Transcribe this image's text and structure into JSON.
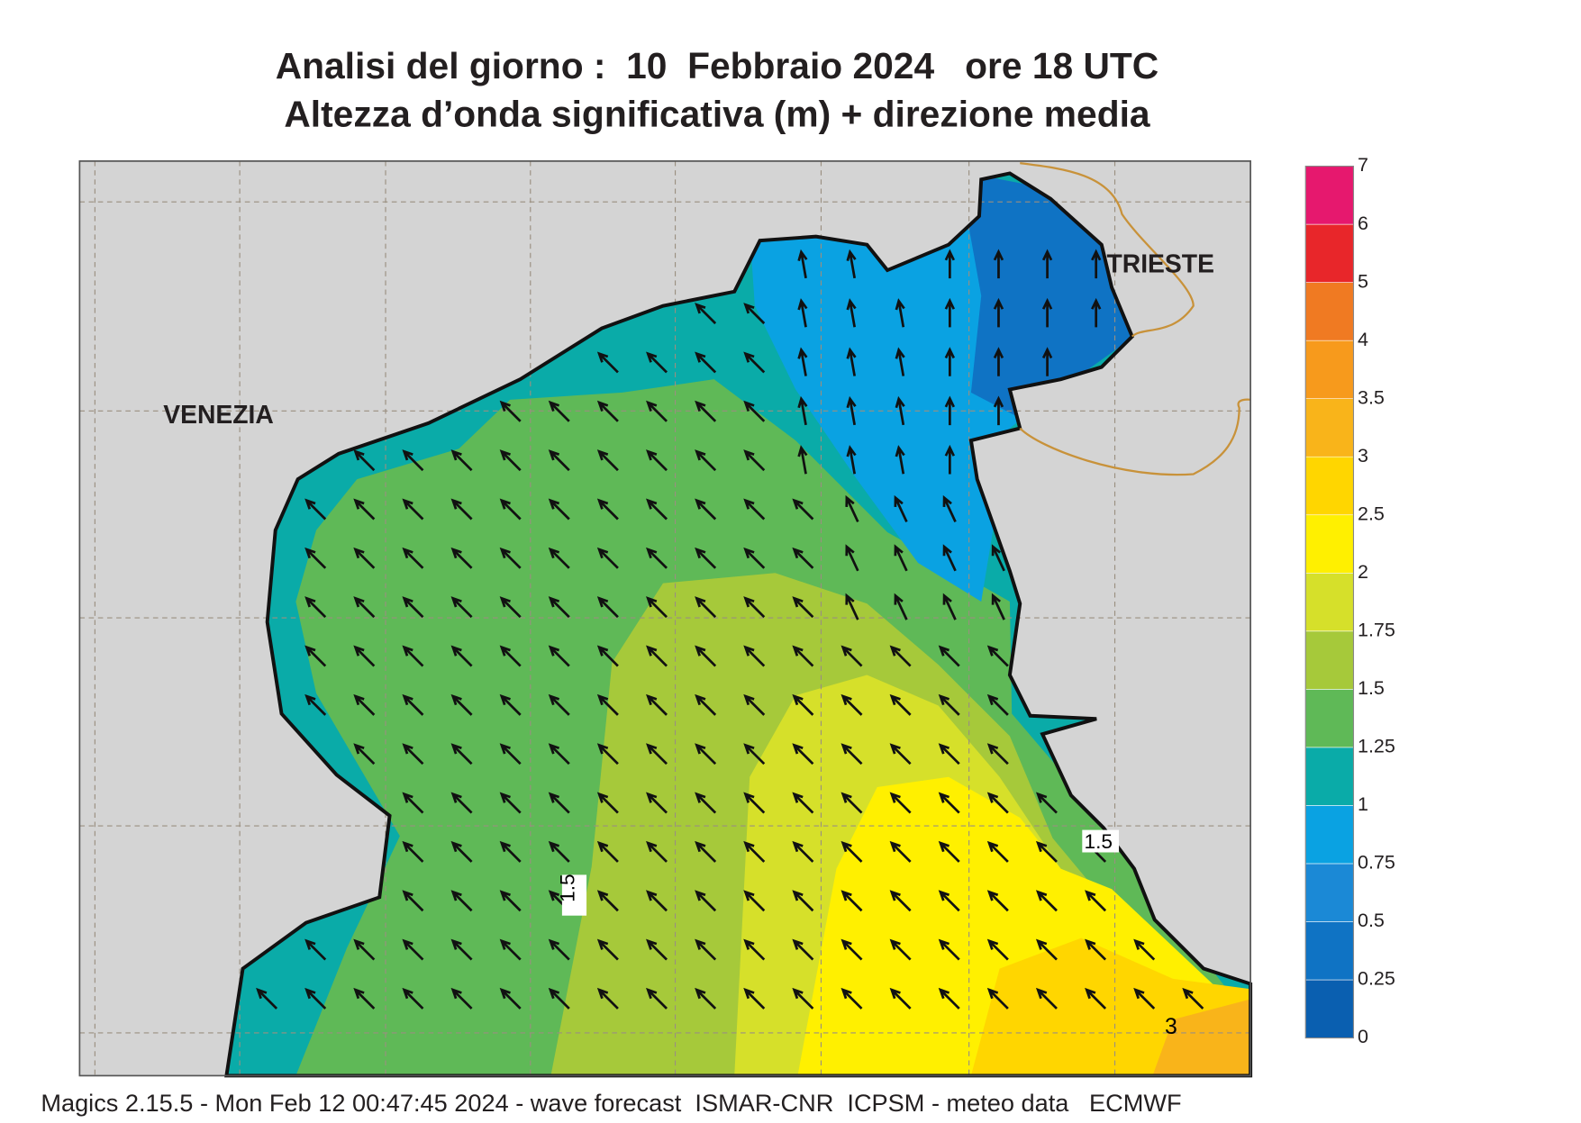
{
  "title": {
    "line1": "Analisi del giorno :  10  Febbraio 2024   ore 18 UTC",
    "line2": "Altezza d’onda significativa (m) + direzione media"
  },
  "map": {
    "places": [
      "VENEZIA",
      "TRIESTE"
    ],
    "contour_labels": [
      "1.5",
      "1.5",
      "3"
    ]
  },
  "colorbar": {
    "levels": [
      0,
      0.25,
      0.5,
      0.75,
      1,
      1.25,
      1.5,
      1.75,
      2,
      2.5,
      3,
      3.5,
      4,
      5,
      6,
      7
    ],
    "colors": [
      "#0a5fb0",
      "#0f73c4",
      "#1b89d6",
      "#0aa2e2",
      "#0aaba8",
      "#5fb957",
      "#a6c93a",
      "#d6e02a",
      "#fff000",
      "#ffd600",
      "#f9b41a",
      "#f79a1c",
      "#f07a22",
      "#e8262a",
      "#e6186e"
    ]
  },
  "footer": "Magics 2.15.5 - Mon Feb 12 00:47:45 2024 - wave forecast  ISMAR-CNR  ICPSM - meteo data   ECMWF"
}
